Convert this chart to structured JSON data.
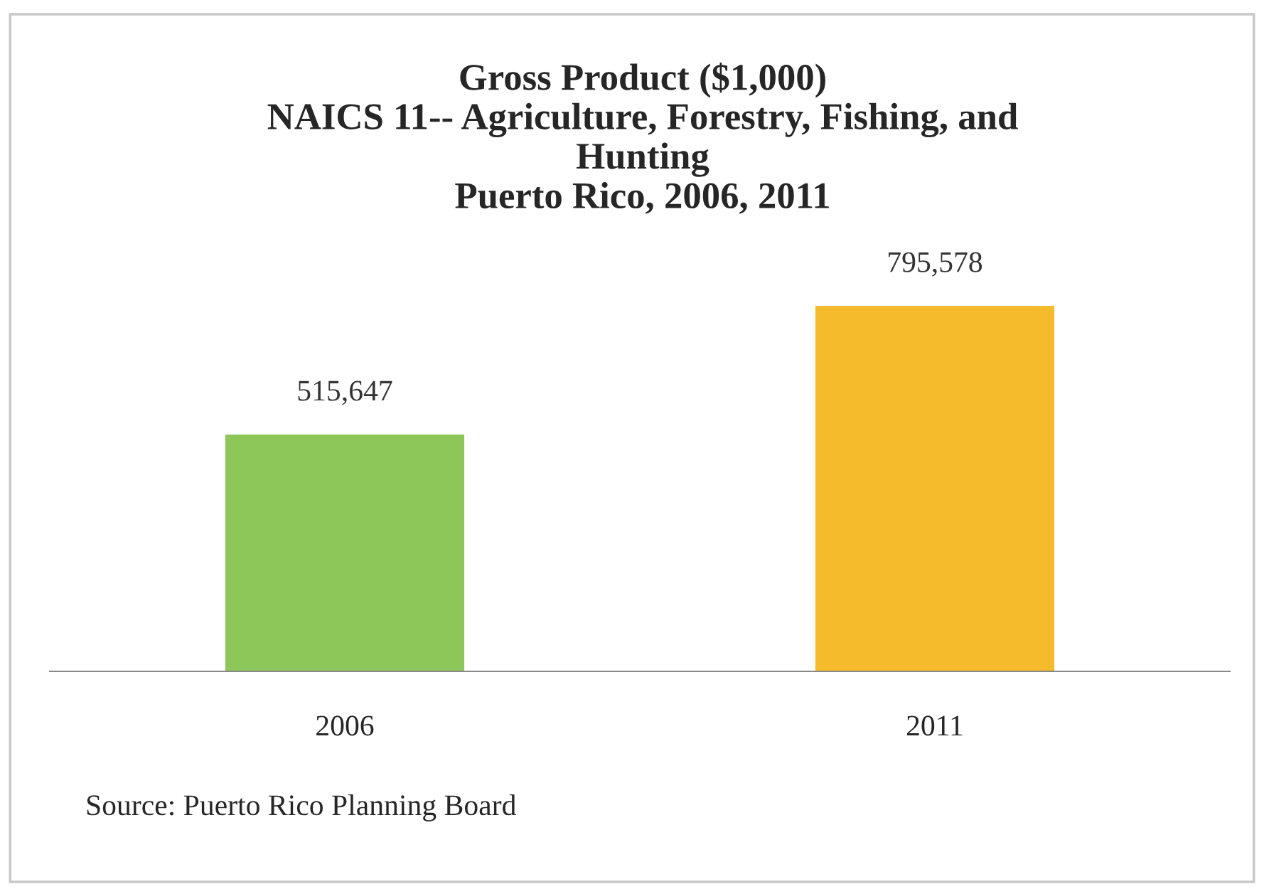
{
  "chart_data": {
    "type": "bar",
    "title": "Gross Product ($1,000)\nNAICS 11-- Agriculture, Forestry, Fishing, and\nHunting\nPuerto Rico, 2006, 2011",
    "categories": [
      "2006",
      "2011"
    ],
    "values": [
      515647,
      795578
    ],
    "colors": [
      "#8dc75a",
      "#f5bb2c"
    ],
    "value_labels": [
      "515,647",
      "795,578"
    ],
    "annotations": [
      "Source: Puerto Rico Planning Board"
    ],
    "grid": false,
    "legend": false
  }
}
